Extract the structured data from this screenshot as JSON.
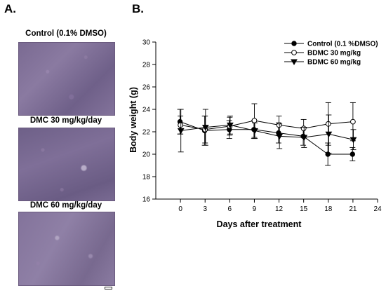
{
  "panel_a": {
    "label": "A.",
    "images": [
      {
        "caption": "Control (0.1% DMSO)"
      },
      {
        "caption": "DMC 30 mg/kg/day"
      },
      {
        "caption": "DMC 60 mg/kg/day"
      }
    ]
  },
  "panel_b": {
    "label": "B."
  },
  "chart_data": {
    "type": "line",
    "title": "",
    "xlabel": "Days after treatment",
    "ylabel": "Body weight (g)",
    "xlim": [
      -3,
      24
    ],
    "ylim": [
      16,
      30
    ],
    "x_ticks": [
      0,
      3,
      6,
      9,
      12,
      15,
      18,
      21,
      24
    ],
    "y_ticks": [
      16,
      18,
      20,
      22,
      24,
      26,
      28,
      30
    ],
    "grid": false,
    "legend_position": "top-right",
    "x": [
      0,
      3,
      6,
      9,
      12,
      15,
      18,
      21
    ],
    "series": [
      {
        "name": "Control (0.1 %DMSO)",
        "marker": "filled-circle",
        "values": [
          22.9,
          22.1,
          22.2,
          22.2,
          21.9,
          21.6,
          20.0,
          20.0
        ],
        "errors": [
          1.1,
          1.3,
          0.8,
          0.8,
          0.9,
          0.8,
          1.0,
          0.6
        ]
      },
      {
        "name": "BDMC 30 mg/kg",
        "marker": "open-circle",
        "values": [
          22.6,
          22.2,
          22.5,
          23.0,
          22.6,
          22.3,
          22.7,
          22.9
        ],
        "errors": [
          0.8,
          1.2,
          0.8,
          1.5,
          0.8,
          0.8,
          1.9,
          1.7
        ]
      },
      {
        "name": "BDMC 60 mg/kg",
        "marker": "filled-triangle-down",
        "values": [
          22.1,
          22.4,
          22.6,
          22.1,
          21.6,
          21.5,
          21.8,
          21.3
        ],
        "errors": [
          1.9,
          1.6,
          0.8,
          0.7,
          1.1,
          0.9,
          1.7,
          0.9
        ]
      }
    ]
  }
}
